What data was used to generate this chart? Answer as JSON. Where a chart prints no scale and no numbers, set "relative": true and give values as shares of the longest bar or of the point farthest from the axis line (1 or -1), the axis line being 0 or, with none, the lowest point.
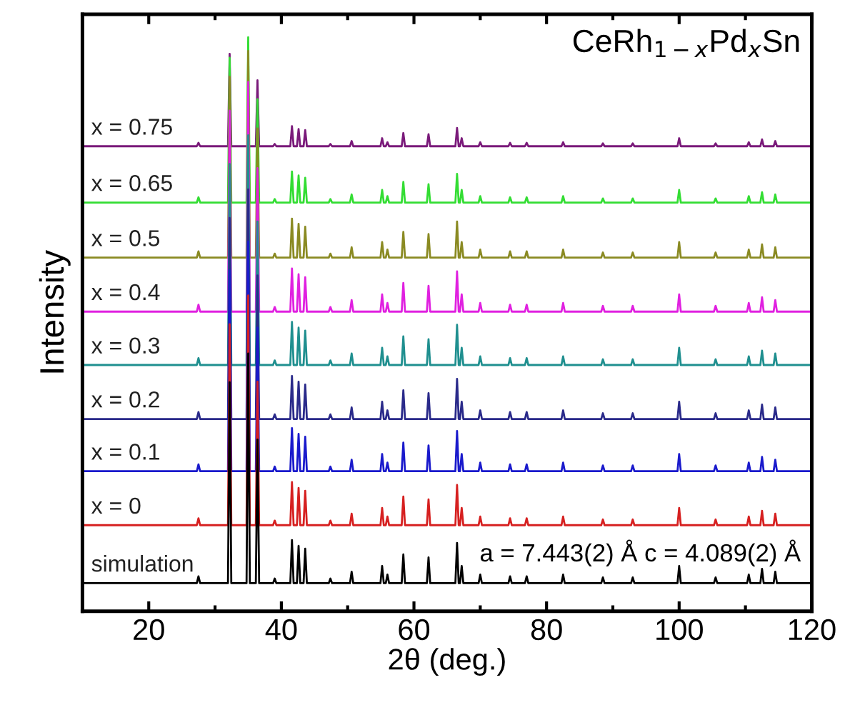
{
  "chart_data": {
    "type": "line",
    "relative": true,
    "title": "CeRh$_{1−x}$Pd$_{x}$Sn",
    "xlabel": "2θ (deg.)",
    "ylabel": "Intensity",
    "annotations": [
      "a = 7.443(2) Å c = 4.089(2) Å"
    ],
    "xlim": [
      10,
      120
    ],
    "xticks": [
      20,
      {
        "value": 30,
        "label": null
      },
      40,
      {
        "value": 50,
        "label": null
      },
      60,
      {
        "value": 70,
        "label": null
      },
      80,
      {
        "value": 90,
        "label": null
      },
      100,
      {
        "value": 110,
        "label": null
      },
      120
    ],
    "tick_labels": "x",
    "grid": false,
    "legend": false,
    "marker": "none",
    "line_style": "solid",
    "x": [
      10,
      27.25,
      27.5,
      27.75,
      31.95,
      32.2,
      32.45,
      34.75,
      35.0,
      35.25,
      36.15,
      36.4,
      36.65,
      38.75,
      39,
      39.25,
      41.35,
      41.6,
      41.85,
      42.35,
      42.6,
      42.85,
      43.35,
      43.6,
      43.85,
      47.15,
      47.4,
      47.65,
      50.35,
      50.6,
      50.85,
      54.95,
      55.2,
      55.45,
      55.75,
      56.0,
      56.25,
      58.15,
      58.4,
      58.65,
      61.95,
      62.2,
      62.45,
      66.25,
      66.5,
      66.75,
      66.95,
      67.2,
      67.45,
      69.75,
      70,
      70.25,
      74.25,
      74.5,
      74.75,
      76.75,
      77,
      77.25,
      82.25,
      82.5,
      82.75,
      88.25,
      88.5,
      88.75,
      92.75,
      93,
      93.25,
      99.75,
      100,
      100.25,
      105.25,
      105.5,
      105.75,
      110.25,
      110.5,
      110.75,
      112.25,
      112.5,
      112.75,
      114.25,
      114.5,
      114.75,
      120
    ],
    "series": [
      {
        "name": "x = 0.75",
        "color": "#7a1a7a",
        "values": [
          0.81,
          0.81,
          0.816,
          0.81,
          0.81,
          0.971,
          0.81,
          0.81,
          null,
          0.81,
          0.81,
          0.925,
          0.81,
          0.81,
          0.814,
          0.81,
          0.81,
          0.845,
          0.81,
          0.81,
          0.84,
          0.81,
          0.81,
          0.838,
          0.81,
          0.81,
          0.814,
          0.81,
          0.81,
          0.819,
          0.81,
          0.81,
          0.824,
          0.81,
          0.81,
          0.817,
          0.81,
          0.81,
          0.833,
          0.81,
          0.81,
          0.831,
          0.81,
          0.81,
          0.842,
          0.81,
          0.81,
          0.824,
          0.81,
          0.81,
          0.817,
          0.81,
          0.81,
          0.816,
          0.81,
          0.81,
          0.816,
          0.81,
          0.81,
          0.817,
          0.81,
          0.81,
          0.815,
          0.81,
          0.81,
          0.815,
          0.81,
          0.81,
          0.824,
          0.81,
          0.81,
          0.815,
          0.81,
          0.81,
          0.817,
          0.81,
          0.81,
          0.822,
          0.81,
          0.81,
          0.819,
          0.81,
          0.81
        ]
      },
      {
        "name": "x = 0.65",
        "color": "#33dd33",
        "values": [
          0.712,
          0.712,
          0.721,
          0.712,
          0.712,
          0.964,
          0.712,
          0.712,
          1.0,
          0.712,
          0.712,
          0.892,
          0.712,
          0.712,
          0.718,
          0.712,
          0.712,
          0.766,
          0.712,
          0.712,
          0.759,
          0.712,
          0.712,
          0.755,
          0.712,
          0.712,
          0.718,
          0.712,
          0.712,
          0.726,
          0.712,
          0.712,
          0.734,
          0.712,
          0.712,
          0.723,
          0.712,
          0.712,
          0.748,
          0.712,
          0.712,
          0.744,
          0.712,
          0.712,
          0.762,
          0.712,
          0.712,
          0.734,
          0.712,
          0.712,
          0.723,
          0.712,
          0.712,
          0.721,
          0.712,
          0.712,
          0.721,
          0.712,
          0.712,
          0.723,
          0.712,
          0.712,
          0.719,
          0.712,
          0.712,
          0.719,
          0.712,
          0.712,
          0.734,
          0.712,
          0.712,
          0.719,
          0.712,
          0.712,
          0.723,
          0.712,
          0.712,
          0.73,
          0.712,
          0.712,
          0.726,
          0.712,
          0.712
        ]
      },
      {
        "name": "x = 0.5",
        "color": "#8a8a22",
        "values": [
          0.616,
          0.616,
          0.627,
          0.616,
          0.616,
          0.931,
          0.616,
          0.616,
          0.976,
          0.616,
          0.616,
          0.841,
          0.616,
          0.616,
          0.623,
          0.616,
          0.616,
          0.684,
          0.616,
          0.616,
          0.675,
          0.616,
          0.616,
          0.67,
          0.616,
          0.616,
          0.623,
          0.616,
          0.616,
          0.634,
          0.616,
          0.616,
          0.643,
          0.616,
          0.616,
          0.63,
          0.616,
          0.616,
          0.661,
          0.616,
          0.616,
          0.657,
          0.616,
          0.616,
          0.679,
          0.616,
          0.616,
          0.643,
          0.616,
          0.616,
          0.63,
          0.616,
          0.616,
          0.627,
          0.616,
          0.616,
          0.627,
          0.616,
          0.616,
          0.63,
          0.616,
          0.616,
          0.625,
          0.616,
          0.616,
          0.625,
          0.616,
          0.616,
          0.643,
          0.616,
          0.616,
          0.625,
          0.616,
          0.616,
          0.63,
          0.616,
          0.616,
          0.639,
          0.616,
          0.616,
          0.634,
          0.616,
          0.616
        ]
      },
      {
        "name": "x = 0.4",
        "color": "#e020e0",
        "values": [
          0.522,
          0.522,
          0.534,
          0.522,
          0.522,
          0.872,
          0.522,
          0.522,
          0.922,
          0.522,
          0.522,
          0.772,
          0.522,
          0.522,
          0.53,
          0.522,
          0.522,
          0.597,
          0.522,
          0.522,
          0.587,
          0.522,
          0.522,
          0.582,
          0.522,
          0.522,
          0.53,
          0.522,
          0.522,
          0.542,
          0.522,
          0.522,
          0.552,
          0.522,
          0.522,
          0.537,
          0.522,
          0.522,
          0.572,
          0.522,
          0.522,
          0.567,
          0.522,
          0.522,
          0.592,
          0.522,
          0.522,
          0.552,
          0.522,
          0.522,
          0.537,
          0.522,
          0.522,
          0.534,
          0.522,
          0.522,
          0.534,
          0.522,
          0.522,
          0.537,
          0.522,
          0.522,
          0.532,
          0.522,
          0.522,
          0.532,
          0.522,
          0.522,
          0.552,
          0.522,
          0.522,
          0.532,
          0.522,
          0.522,
          0.537,
          0.522,
          0.522,
          0.547,
          0.522,
          0.522,
          0.542,
          0.522,
          0.522
        ]
      },
      {
        "name": "x = 0.3",
        "color": "#1f8f8f",
        "values": [
          0.429,
          0.429,
          0.441,
          0.429,
          0.429,
          0.779,
          0.429,
          0.429,
          0.829,
          0.429,
          0.429,
          0.679,
          0.429,
          0.429,
          0.437,
          0.429,
          0.429,
          0.504,
          0.429,
          0.429,
          0.494,
          0.429,
          0.429,
          0.489,
          0.429,
          0.429,
          0.437,
          0.429,
          0.429,
          0.449,
          0.429,
          0.429,
          0.459,
          0.429,
          0.429,
          0.444,
          0.429,
          0.429,
          0.479,
          0.429,
          0.429,
          0.474,
          0.429,
          0.429,
          0.499,
          0.429,
          0.429,
          0.459,
          0.429,
          0.429,
          0.444,
          0.429,
          0.429,
          0.441,
          0.429,
          0.429,
          0.441,
          0.429,
          0.429,
          0.444,
          0.429,
          0.429,
          0.439,
          0.429,
          0.429,
          0.439,
          0.429,
          0.429,
          0.459,
          0.429,
          0.429,
          0.439,
          0.429,
          0.429,
          0.444,
          0.429,
          0.429,
          0.454,
          0.429,
          0.429,
          0.449,
          0.429,
          0.429
        ]
      },
      {
        "name": "x = 0.2",
        "color": "#2a2a8a",
        "values": [
          0.335,
          0.335,
          0.347,
          0.335,
          0.335,
          0.685,
          0.335,
          0.335,
          0.735,
          0.335,
          0.335,
          0.585,
          0.335,
          0.335,
          0.343,
          0.335,
          0.335,
          0.41,
          0.335,
          0.335,
          0.4,
          0.335,
          0.335,
          0.395,
          0.335,
          0.335,
          0.343,
          0.335,
          0.335,
          0.355,
          0.335,
          0.335,
          0.365,
          0.335,
          0.335,
          0.35,
          0.335,
          0.335,
          0.385,
          0.335,
          0.335,
          0.38,
          0.335,
          0.335,
          0.405,
          0.335,
          0.335,
          0.365,
          0.335,
          0.335,
          0.35,
          0.335,
          0.335,
          0.347,
          0.335,
          0.335,
          0.347,
          0.335,
          0.335,
          0.35,
          0.335,
          0.335,
          0.345,
          0.335,
          0.335,
          0.345,
          0.335,
          0.335,
          0.365,
          0.335,
          0.335,
          0.345,
          0.335,
          0.335,
          0.35,
          0.335,
          0.335,
          0.36,
          0.335,
          0.335,
          0.355,
          0.335,
          0.335
        ]
      },
      {
        "name": "x = 0.1",
        "color": "#1a1acc",
        "values": [
          0.244,
          0.244,
          0.256,
          0.244,
          0.244,
          0.594,
          0.244,
          0.244,
          0.644,
          0.244,
          0.244,
          0.494,
          0.244,
          0.244,
          0.252,
          0.244,
          0.244,
          0.319,
          0.244,
          0.244,
          0.309,
          0.244,
          0.244,
          0.304,
          0.244,
          0.244,
          0.252,
          0.244,
          0.244,
          0.264,
          0.244,
          0.244,
          0.274,
          0.244,
          0.244,
          0.259,
          0.244,
          0.244,
          0.294,
          0.244,
          0.244,
          0.289,
          0.244,
          0.244,
          0.314,
          0.244,
          0.244,
          0.274,
          0.244,
          0.244,
          0.259,
          0.244,
          0.244,
          0.256,
          0.244,
          0.244,
          0.256,
          0.244,
          0.244,
          0.259,
          0.244,
          0.244,
          0.254,
          0.244,
          0.244,
          0.254,
          0.244,
          0.244,
          0.274,
          0.244,
          0.244,
          0.254,
          0.244,
          0.244,
          0.259,
          0.244,
          0.244,
          0.269,
          0.244,
          0.244,
          0.264,
          0.244,
          0.244
        ]
      },
      {
        "name": "x = 0",
        "color": "#d62020",
        "values": [
          0.15,
          0.15,
          0.162,
          0.15,
          0.15,
          0.5,
          0.15,
          0.15,
          0.55,
          0.15,
          0.15,
          0.4,
          0.15,
          0.15,
          0.158,
          0.15,
          0.15,
          0.225,
          0.15,
          0.15,
          0.215,
          0.15,
          0.15,
          0.21,
          0.15,
          0.15,
          0.158,
          0.15,
          0.15,
          0.17,
          0.15,
          0.15,
          0.18,
          0.15,
          0.15,
          0.165,
          0.15,
          0.15,
          0.2,
          0.15,
          0.15,
          0.195,
          0.15,
          0.15,
          0.22,
          0.15,
          0.15,
          0.18,
          0.15,
          0.15,
          0.165,
          0.15,
          0.15,
          0.162,
          0.15,
          0.15,
          0.162,
          0.15,
          0.15,
          0.165,
          0.15,
          0.15,
          0.16,
          0.15,
          0.15,
          0.16,
          0.15,
          0.15,
          0.18,
          0.15,
          0.15,
          0.16,
          0.15,
          0.15,
          0.165,
          0.15,
          0.15,
          0.175,
          0.15,
          0.15,
          0.17,
          0.15,
          0.15
        ]
      },
      {
        "name": "simulation",
        "color": "#000000",
        "values": [
          0.049,
          0.049,
          0.061,
          0.049,
          0.049,
          0.399,
          0.049,
          0.049,
          0.449,
          0.049,
          0.049,
          0.299,
          0.049,
          0.049,
          0.057,
          0.049,
          0.049,
          0.124,
          0.049,
          0.049,
          0.114,
          0.049,
          0.049,
          0.109,
          0.049,
          0.049,
          0.057,
          0.049,
          0.049,
          0.069,
          0.049,
          0.049,
          0.079,
          0.049,
          0.049,
          0.064,
          0.049,
          0.049,
          0.099,
          0.049,
          0.049,
          0.094,
          0.049,
          0.049,
          0.119,
          0.049,
          0.049,
          0.079,
          0.049,
          0.049,
          0.064,
          0.049,
          0.049,
          0.061,
          0.049,
          0.049,
          0.061,
          0.049,
          0.049,
          0.064,
          0.049,
          0.049,
          0.059,
          0.049,
          0.049,
          0.059,
          0.049,
          0.049,
          0.079,
          0.049,
          0.049,
          0.059,
          0.049,
          0.049,
          0.064,
          0.049,
          0.049,
          0.074,
          0.049,
          0.049,
          0.069,
          0.049,
          0.049
        ]
      }
    ]
  }
}
